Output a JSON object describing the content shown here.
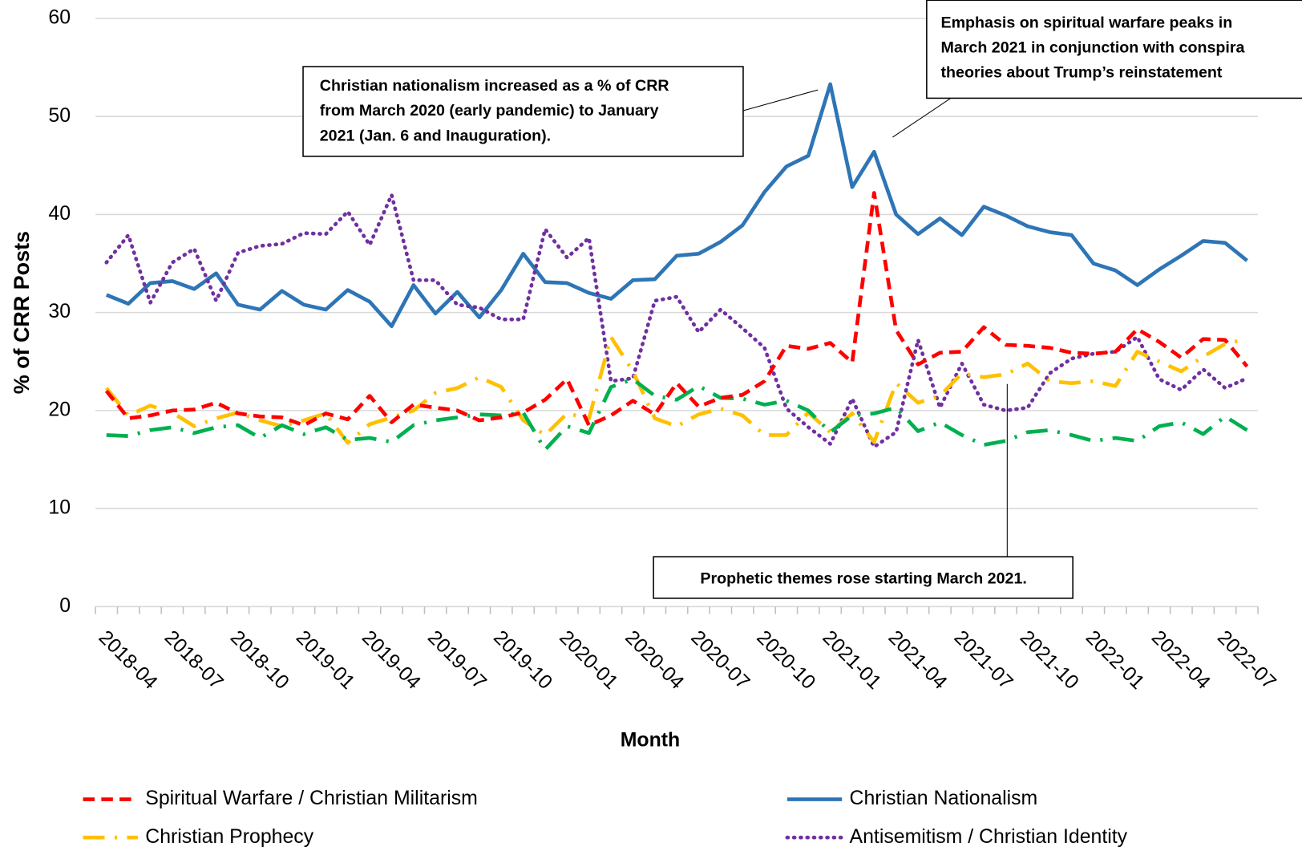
{
  "chart_data": {
    "type": "line",
    "xlabel": "Month",
    "ylabel": "% of CRR Posts",
    "categories": [
      "2018-04",
      null,
      null,
      "2018-07",
      null,
      null,
      "2018-10",
      null,
      null,
      "2019-01",
      null,
      null,
      "2019-04",
      null,
      null,
      "2019-07",
      null,
      null,
      "2019-10",
      null,
      null,
      "2020-01",
      null,
      null,
      "2020-04",
      null,
      null,
      "2020-07",
      null,
      null,
      "2020-10",
      null,
      null,
      "2021-01",
      null,
      null,
      "2021-04",
      null,
      null,
      "2021-07",
      null,
      null,
      "2021-10",
      null,
      null,
      "2022-01",
      null,
      null,
      "2022-04",
      null,
      null,
      "2022-07",
      null
    ],
    "series": [
      {
        "name": "Spiritual Warfare / Christian Militarism",
        "color": "#ff0000",
        "dash": "14,8",
        "values": [
          22.0,
          19.2,
          19.5,
          20.0,
          20.1,
          20.8,
          19.7,
          19.4,
          19.3,
          18.5,
          19.7,
          19.1,
          21.5,
          18.8,
          20.6,
          20.3,
          20.0,
          19.0,
          19.3,
          19.8,
          21.1,
          23.2,
          18.5,
          19.5,
          21.0,
          19.6,
          22.8,
          20.4,
          21.3,
          21.6,
          23.0,
          26.6,
          26.3,
          26.9,
          24.9,
          42.2,
          28.2,
          24.7,
          25.9,
          26.0,
          28.5,
          26.7,
          26.6,
          26.4,
          25.9,
          25.8,
          26.0,
          28.3,
          27.0,
          25.4,
          27.3,
          27.2,
          24.5
        ]
      },
      {
        "name": "Christian Nationalism",
        "color": "#2e75b6",
        "dash": "none",
        "values": [
          31.8,
          30.9,
          33.0,
          33.2,
          32.4,
          34.0,
          30.8,
          30.3,
          32.2,
          30.8,
          30.3,
          32.3,
          31.1,
          28.6,
          32.8,
          29.9,
          32.1,
          29.5,
          32.3,
          36.0,
          33.1,
          33.0,
          32.0,
          31.4,
          33.3,
          33.4,
          35.8,
          36.0,
          37.2,
          38.9,
          42.3,
          44.9,
          46.0,
          53.3,
          42.8,
          46.4,
          40.0,
          38.0,
          39.6,
          37.9,
          40.8,
          39.9,
          38.8,
          38.2,
          37.9,
          35.0,
          34.3,
          32.8,
          34.4,
          35.8,
          37.3,
          37.1,
          35.3
        ]
      },
      {
        "name": "Christian Prophecy",
        "color": "#ffc000",
        "dash": "26,12,3,12",
        "values": [
          22.3,
          19.5,
          20.5,
          19.8,
          18.4,
          19.2,
          19.8,
          19.0,
          18.4,
          19.0,
          19.7,
          16.7,
          18.6,
          19.3,
          20.0,
          21.8,
          22.3,
          23.4,
          22.4,
          19.0,
          17.5,
          19.7,
          19.2,
          27.5,
          24.0,
          19.2,
          18.4,
          19.6,
          20.2,
          19.5,
          17.5,
          17.5,
          19.8,
          17.8,
          19.7,
          16.8,
          22.8,
          20.8,
          21.5,
          23.8,
          23.4,
          23.7,
          24.8,
          23.0,
          22.8,
          23.0,
          22.5,
          26.0,
          25.0,
          24.0,
          25.5,
          26.8,
          27.3
        ]
      },
      {
        "name": "Antisemitism / Christian Identity",
        "color": "#7030a0",
        "dash": "1,7",
        "values": [
          35.1,
          37.9,
          31.0,
          35.1,
          36.5,
          31.2,
          36.1,
          36.8,
          37.0,
          38.1,
          38.0,
          40.3,
          36.9,
          42.0,
          33.3,
          33.3,
          30.8,
          30.5,
          29.3,
          29.3,
          38.5,
          35.6,
          37.6,
          23.0,
          23.3,
          31.2,
          31.6,
          28.0,
          30.3,
          28.4,
          26.4,
          20.2,
          18.3,
          16.6,
          21.2,
          16.3,
          17.8,
          27.2,
          20.3,
          24.8,
          20.6,
          20.0,
          20.3,
          23.8,
          25.3,
          25.8,
          26.0,
          27.5,
          23.2,
          22.1,
          24.2,
          22.3,
          23.3
        ]
      },
      {
        "color": "#00b050",
        "dash": "26,12,3,12",
        "values": [
          17.5,
          17.4,
          18.0,
          18.3,
          17.7,
          18.3,
          18.5,
          17.2,
          18.5,
          17.6,
          18.3,
          17.0,
          17.2,
          16.8,
          18.5,
          19.0,
          19.3,
          19.6,
          19.5,
          19.8,
          16.0,
          18.4,
          17.7,
          22.4,
          23.2,
          21.5,
          21.1,
          22.5,
          21.3,
          21.2,
          20.6,
          21.0,
          20.0,
          17.8,
          19.5,
          19.7,
          20.3,
          17.9,
          18.8,
          17.5,
          16.5,
          16.9,
          17.8,
          18.0,
          17.5,
          16.9,
          17.2,
          16.9,
          18.4,
          18.8,
          17.6,
          19.4,
          18.0
        ]
      }
    ],
    "ylim": [
      0,
      60
    ],
    "yticks": [
      0,
      10,
      20,
      30,
      40,
      50,
      60
    ],
    "grid": true,
    "legend": "bottom",
    "annotations": [
      {
        "lines": [
          "Christian nationalism increased as a % of CRR",
          "from March 2020 (early pandemic) to January",
          "2021 (Jan. 6 and Inauguration)."
        ]
      },
      {
        "lines": [
          "Emphasis on spiritual warfare peaks in",
          "March 2021 in conjunction with conspira",
          "theories about Trump’s reinstatement"
        ]
      },
      {
        "lines": [
          "Prophetic themes rose starting March 2021."
        ]
      }
    ]
  }
}
